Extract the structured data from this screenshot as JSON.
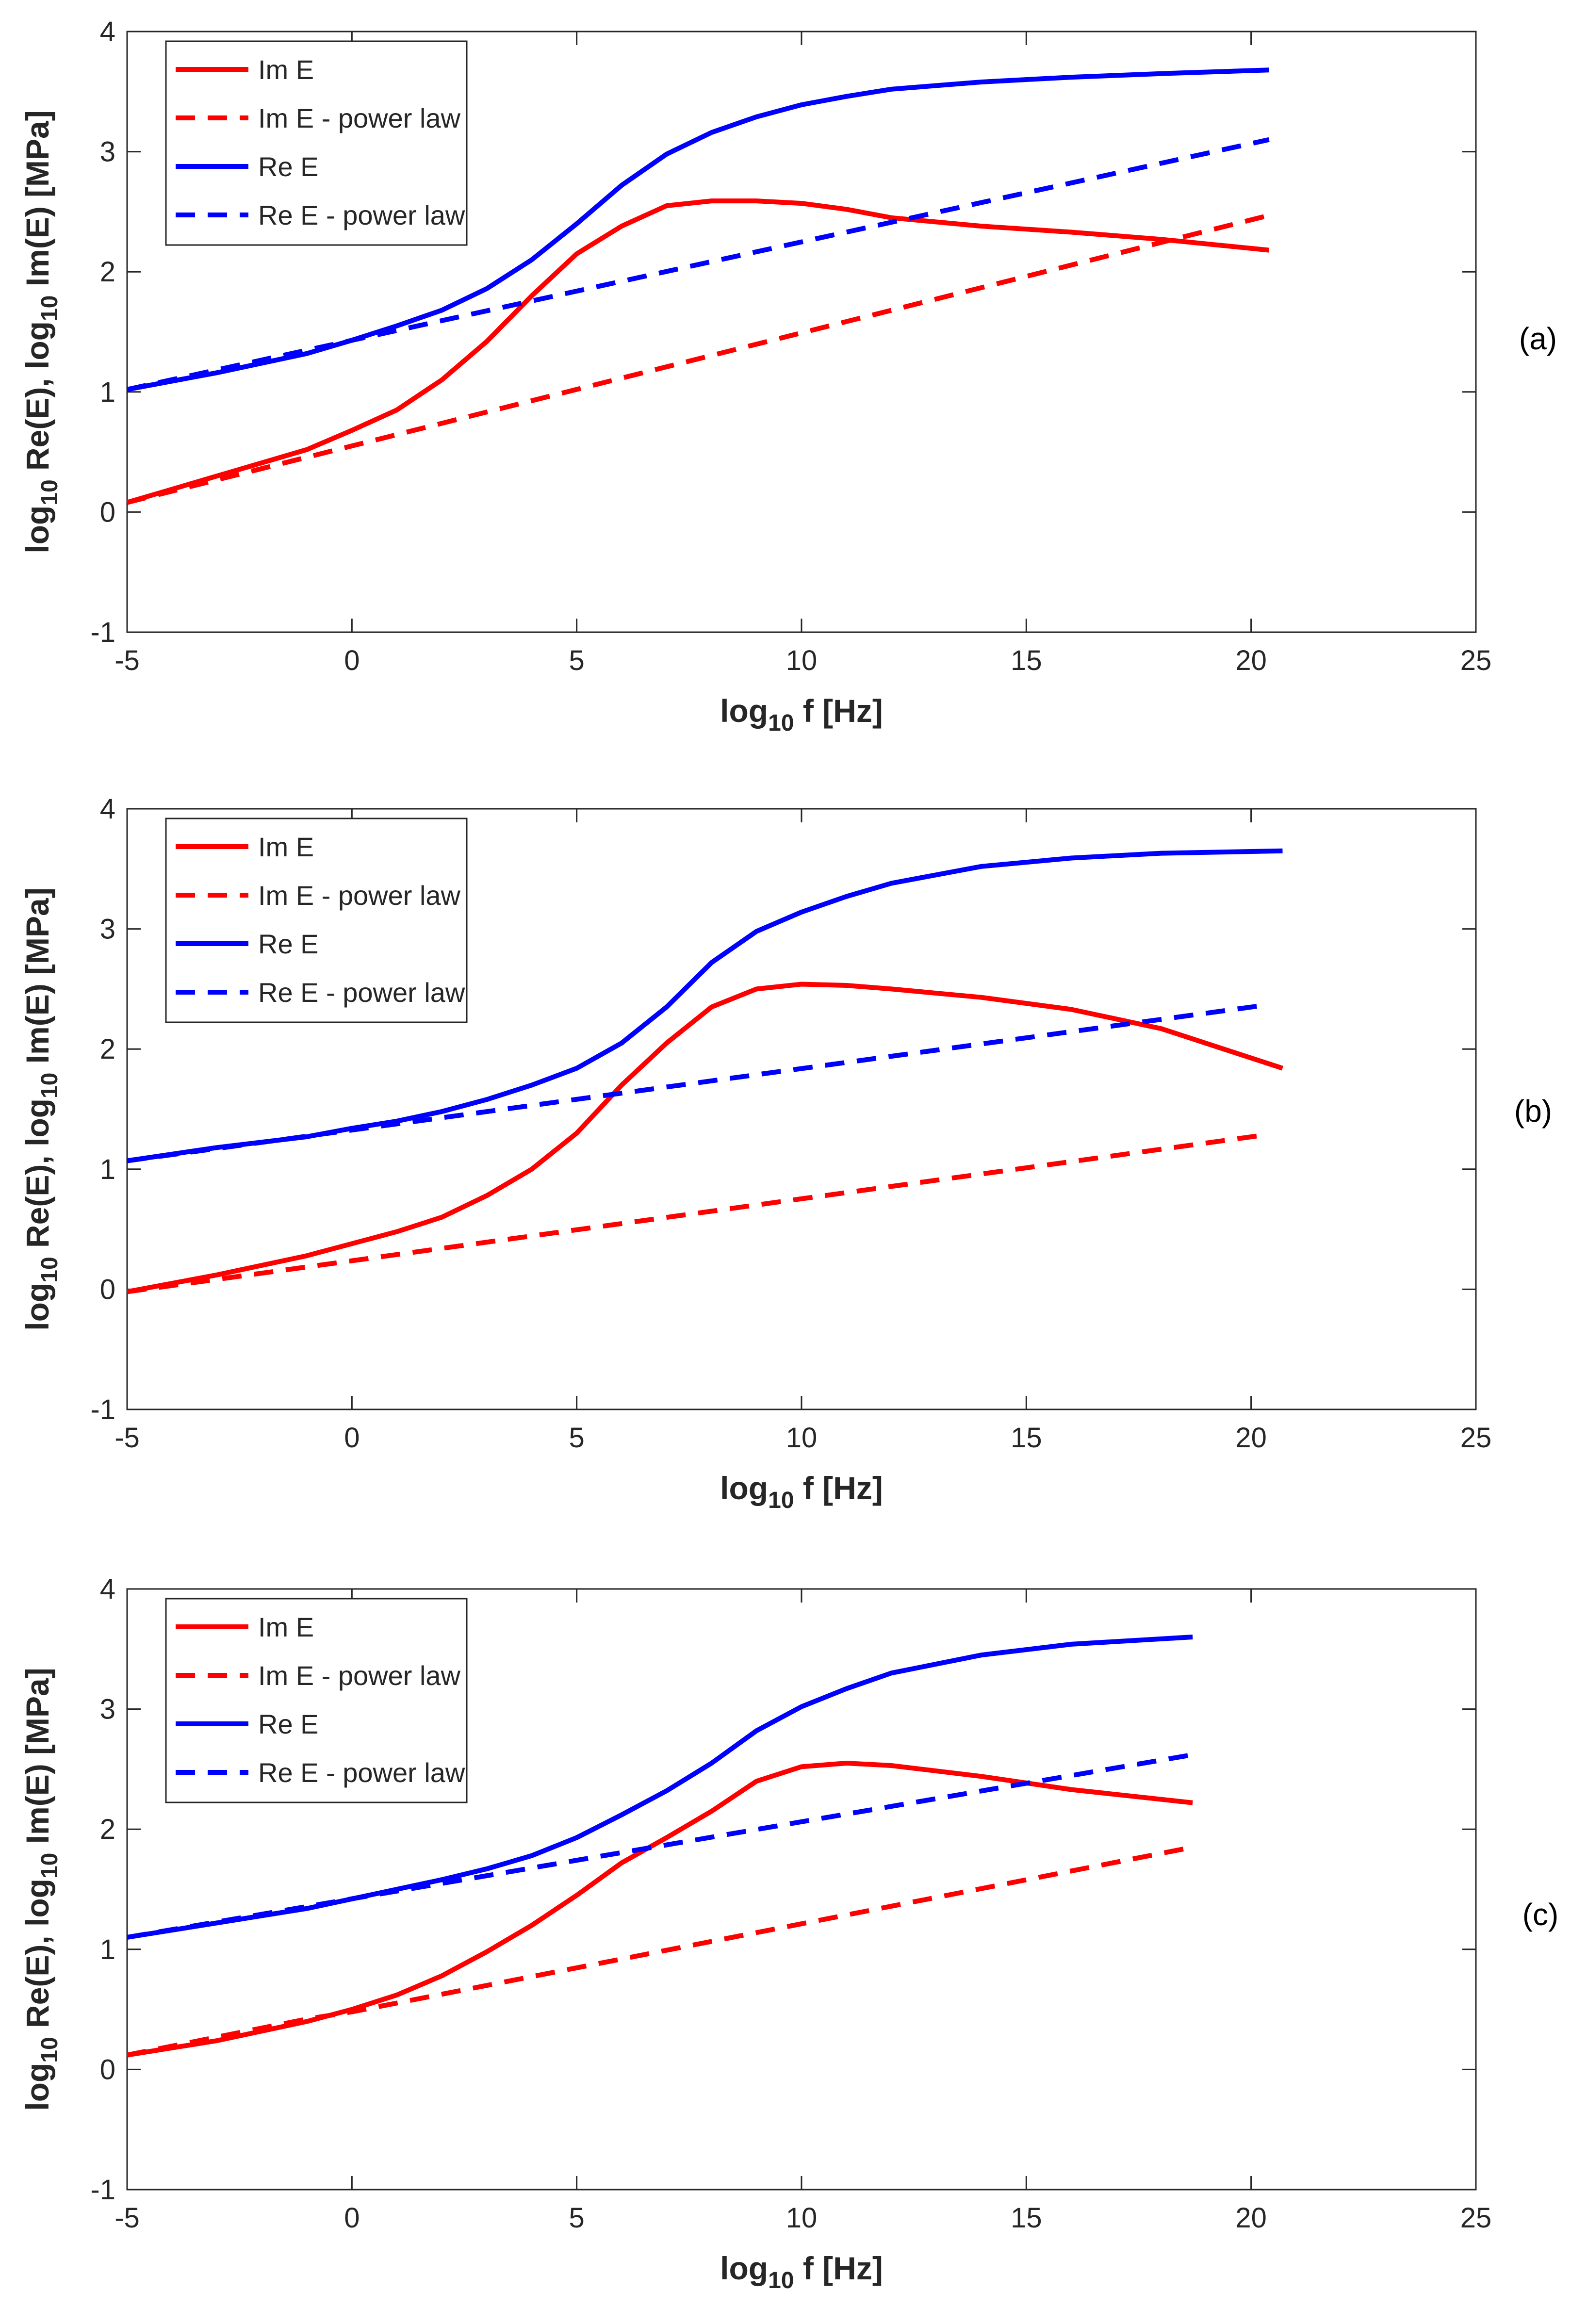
{
  "chart_data": [
    {
      "type": "line",
      "panel_label": "(a)",
      "xlabel": {
        "base": "log",
        "sub": "10",
        "rest": " f [Hz]"
      },
      "ylabel": {
        "p1": "log",
        "s1": "10",
        "p2": " Re(E), log",
        "s2": "10",
        "p3": " Im(E) [MPa]"
      },
      "xlim": [
        -5,
        25
      ],
      "ylim": [
        -1,
        4
      ],
      "xticks": [
        "-5",
        "0",
        "5",
        "10",
        "15",
        "20",
        "25"
      ],
      "yticks": [
        "-1",
        "0",
        "1",
        "2",
        "3",
        "4"
      ],
      "legend_position": "top-left",
      "series": [
        {
          "name": "Im E",
          "color": "#ff0000",
          "dash": "solid",
          "x": [
            -5,
            -3,
            -1,
            0,
            1,
            2,
            3,
            4,
            5,
            6,
            7,
            8,
            9,
            10,
            11,
            12,
            14,
            16,
            18,
            20.4
          ],
          "y": [
            0.08,
            0.3,
            0.52,
            0.68,
            0.85,
            1.1,
            1.42,
            1.8,
            2.15,
            2.38,
            2.55,
            2.59,
            2.59,
            2.57,
            2.52,
            2.45,
            2.38,
            2.33,
            2.27,
            2.18
          ]
        },
        {
          "name": "Im E - power law",
          "color": "#ff0000",
          "dash": "dashed",
          "x": [
            -5,
            20.4
          ],
          "y": [
            0.08,
            2.47
          ]
        },
        {
          "name": "Re E",
          "color": "#0000ff",
          "dash": "solid",
          "x": [
            -5,
            -3,
            -1,
            0,
            1,
            2,
            3,
            4,
            5,
            6,
            7,
            8,
            9,
            10,
            11,
            12,
            14,
            16,
            18,
            20.4
          ],
          "y": [
            1.02,
            1.16,
            1.32,
            1.43,
            1.55,
            1.68,
            1.86,
            2.1,
            2.4,
            2.72,
            2.98,
            3.16,
            3.29,
            3.39,
            3.46,
            3.52,
            3.58,
            3.62,
            3.65,
            3.68
          ]
        },
        {
          "name": "Re E - power law",
          "color": "#0000ff",
          "dash": "dashed",
          "x": [
            -5,
            20.4
          ],
          "y": [
            1.02,
            3.1
          ]
        }
      ]
    },
    {
      "type": "line",
      "panel_label": "(b)",
      "xlabel": {
        "base": "log",
        "sub": "10",
        "rest": " f [Hz]"
      },
      "ylabel": {
        "p1": "log",
        "s1": "10",
        "p2": " Re(E), log",
        "s2": "10",
        "p3": " Im(E) [MPa]"
      },
      "xlim": [
        -5,
        25
      ],
      "ylim": [
        -1,
        4
      ],
      "xticks": [
        "-5",
        "0",
        "5",
        "10",
        "15",
        "20",
        "25"
      ],
      "yticks": [
        "-1",
        "0",
        "1",
        "2",
        "3",
        "4"
      ],
      "legend_position": "top-left",
      "series": [
        {
          "name": "Im E",
          "color": "#ff0000",
          "dash": "solid",
          "x": [
            -5,
            -3,
            -1,
            0,
            1,
            2,
            3,
            4,
            5,
            6,
            7,
            8,
            9,
            10,
            11,
            12,
            14,
            16,
            18,
            20.7
          ],
          "y": [
            -0.02,
            0.12,
            0.28,
            0.38,
            0.48,
            0.6,
            0.78,
            1.0,
            1.3,
            1.7,
            2.05,
            2.35,
            2.5,
            2.54,
            2.53,
            2.5,
            2.43,
            2.33,
            2.17,
            1.84
          ]
        },
        {
          "name": "Im E - power law",
          "color": "#ff0000",
          "dash": "dashed",
          "x": [
            -5,
            20.4
          ],
          "y": [
            -0.02,
            1.29
          ]
        },
        {
          "name": "Re E",
          "color": "#0000ff",
          "dash": "solid",
          "x": [
            -5,
            -3,
            -1,
            0,
            1,
            2,
            3,
            4,
            5,
            6,
            7,
            8,
            9,
            10,
            11,
            12,
            14,
            16,
            18,
            20.7
          ],
          "y": [
            1.07,
            1.18,
            1.27,
            1.34,
            1.4,
            1.48,
            1.58,
            1.7,
            1.84,
            2.05,
            2.35,
            2.72,
            2.98,
            3.14,
            3.27,
            3.38,
            3.52,
            3.59,
            3.63,
            3.65
          ]
        },
        {
          "name": "Re E - power law",
          "color": "#0000ff",
          "dash": "dashed",
          "x": [
            -5,
            20.4
          ],
          "y": [
            1.07,
            2.37
          ]
        }
      ]
    },
    {
      "type": "line",
      "panel_label": "(c)",
      "xlabel": {
        "base": "log",
        "sub": "10",
        "rest": " f [Hz]"
      },
      "ylabel": {
        "p1": "log",
        "s1": "10",
        "p2": " Re(E), log",
        "s2": "10",
        "p3": " Im(E) [MPa]"
      },
      "xlim": [
        -5,
        25
      ],
      "ylim": [
        -1,
        4
      ],
      "xticks": [
        "-5",
        "0",
        "5",
        "10",
        "15",
        "20",
        "25"
      ],
      "yticks": [
        "-1",
        "0",
        "1",
        "2",
        "3",
        "4"
      ],
      "legend_position": "top-left",
      "series": [
        {
          "name": "Im E",
          "color": "#ff0000",
          "dash": "solid",
          "x": [
            -5,
            -3,
            -1,
            0,
            1,
            2,
            3,
            4,
            5,
            6,
            7,
            8,
            9,
            10,
            11,
            12,
            14,
            16,
            18.7
          ],
          "y": [
            0.12,
            0.24,
            0.4,
            0.5,
            0.62,
            0.78,
            0.98,
            1.2,
            1.45,
            1.72,
            1.93,
            2.15,
            2.4,
            2.52,
            2.55,
            2.53,
            2.44,
            2.33,
            2.22
          ]
        },
        {
          "name": "Im E - power law",
          "color": "#ff0000",
          "dash": "dashed",
          "x": [
            -5,
            -1,
            0,
            18.7
          ],
          "y": [
            0.12,
            0.42,
            0.48,
            1.85
          ]
        },
        {
          "name": "Re E",
          "color": "#0000ff",
          "dash": "solid",
          "x": [
            -5,
            -3,
            -1,
            0,
            1,
            2,
            3,
            4,
            5,
            6,
            7,
            8,
            9,
            10,
            11,
            12,
            14,
            16,
            18.7
          ],
          "y": [
            1.1,
            1.22,
            1.34,
            1.42,
            1.5,
            1.58,
            1.67,
            1.78,
            1.93,
            2.12,
            2.32,
            2.55,
            2.82,
            3.02,
            3.17,
            3.3,
            3.45,
            3.54,
            3.6
          ]
        },
        {
          "name": "Re E - power law",
          "color": "#0000ff",
          "dash": "dashed",
          "x": [
            -5,
            18.7
          ],
          "y": [
            1.1,
            2.62
          ]
        }
      ]
    }
  ]
}
